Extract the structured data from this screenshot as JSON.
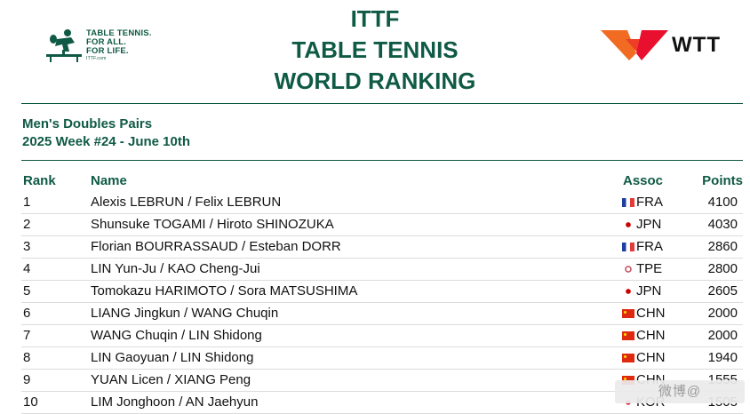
{
  "header": {
    "ittf_logo": {
      "lines": [
        "TABLE TENNIS.",
        "FOR ALL.",
        "FOR LIFE."
      ],
      "url": "ITTF.com",
      "icon": "ittf-player-icon"
    },
    "title_lines": [
      "ITTF",
      "TABLE TENNIS",
      "WORLD RANKING"
    ],
    "wtt_logo": {
      "text": "WTT",
      "icon": "wtt-wings-icon",
      "colors": [
        "#f26b22",
        "#e8102e"
      ]
    }
  },
  "subtitle": {
    "category": "Men's Doubles Pairs",
    "week": "2025 Week #24 - June 10th"
  },
  "table": {
    "headers": {
      "rank": "Rank",
      "name": "Name",
      "assoc": "Assoc",
      "points": "Points"
    },
    "rows": [
      {
        "rank": "1",
        "name": "Alexis LEBRUN / Felix LEBRUN",
        "assoc": "FRA",
        "flag": "fra",
        "points": "4100"
      },
      {
        "rank": "2",
        "name": "Shunsuke TOGAMI / Hiroto SHINOZUKA",
        "assoc": "JPN",
        "flag": "jpn",
        "points": "4030"
      },
      {
        "rank": "3",
        "name": "Florian BOURRASSAUD / Esteban DORR",
        "assoc": "FRA",
        "flag": "fra",
        "points": "2860"
      },
      {
        "rank": "4",
        "name": "LIN Yun-Ju / KAO Cheng-Jui",
        "assoc": "TPE",
        "flag": "tpe",
        "points": "2800"
      },
      {
        "rank": "5",
        "name": "Tomokazu HARIMOTO / Sora MATSUSHIMA",
        "assoc": "JPN",
        "flag": "jpn",
        "points": "2605"
      },
      {
        "rank": "6",
        "name": "LIANG Jingkun / WANG Chuqin",
        "assoc": "CHN",
        "flag": "chn",
        "points": "2000"
      },
      {
        "rank": "7",
        "name": "WANG Chuqin / LIN Shidong",
        "assoc": "CHN",
        "flag": "chn",
        "points": "2000"
      },
      {
        "rank": "8",
        "name": "LIN Gaoyuan / LIN Shidong",
        "assoc": "CHN",
        "flag": "chn",
        "points": "1940"
      },
      {
        "rank": "9",
        "name": "YUAN Licen / XIANG Peng",
        "assoc": "CHN",
        "flag": "chn",
        "points": "1555"
      },
      {
        "rank": "10",
        "name": "LIM Jonghoon / AN Jaehyun",
        "assoc": "KOR",
        "flag": "kor",
        "points": "1505"
      }
    ]
  },
  "colors": {
    "accent": "#0f5a45",
    "row_divider": "#dcdcdc"
  },
  "watermark": {
    "text": "微博@"
  }
}
